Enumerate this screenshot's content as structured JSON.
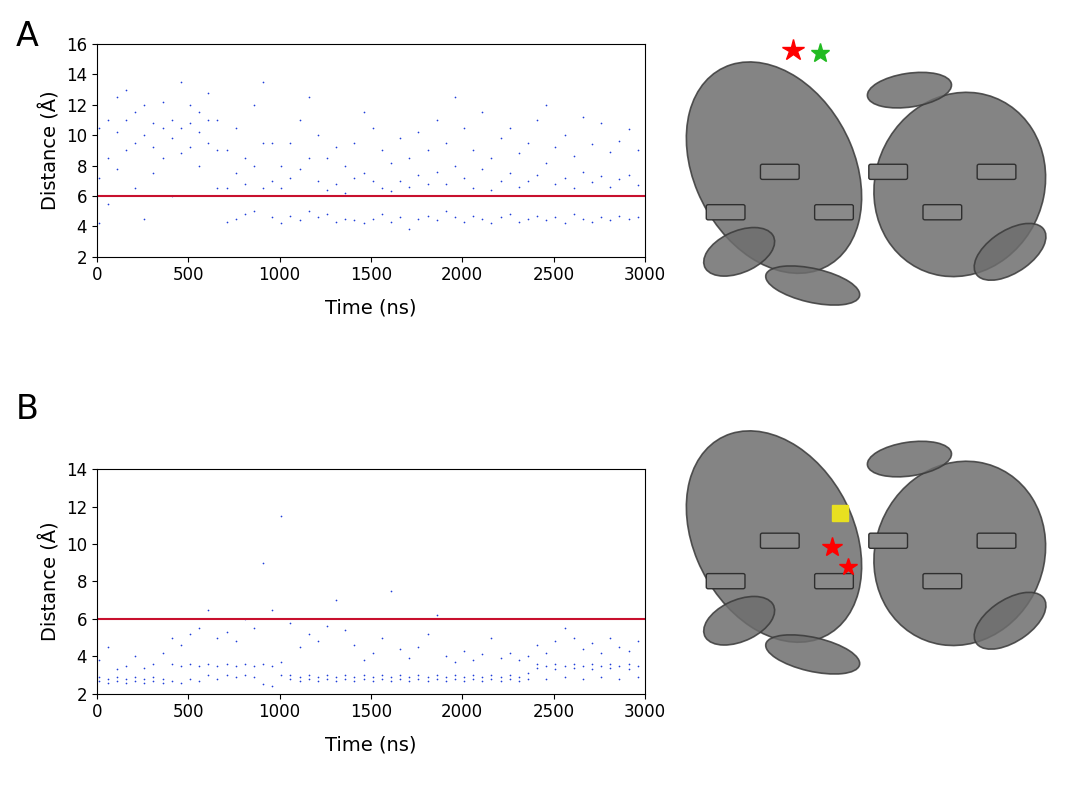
{
  "chart_data": [
    {
      "type": "scatter",
      "title": "A",
      "x_label": "Time (ns)",
      "y_label": "Distance (Å)",
      "xlim": [
        0,
        3000
      ],
      "xticks": [
        0,
        500,
        1000,
        1500,
        2000,
        2500,
        3000
      ],
      "ylim": [
        2,
        16
      ],
      "yticks": [
        2,
        4,
        6,
        8,
        10,
        12,
        14,
        16
      ],
      "x": [
        10,
        60,
        110,
        160,
        210,
        260,
        310,
        360,
        410,
        460,
        510,
        560,
        610,
        660,
        710,
        760,
        810,
        860,
        910,
        960,
        1010,
        1060,
        1110,
        1160,
        1210,
        1260,
        1310,
        1360,
        1410,
        1460,
        1510,
        1560,
        1610,
        1660,
        1710,
        1760,
        1810,
        1860,
        1910,
        1960,
        2010,
        2060,
        2110,
        2160,
        2210,
        2260,
        2310,
        2360,
        2410,
        2460,
        2510,
        2560,
        2610,
        2660,
        2710,
        2760,
        2810,
        2860,
        2910,
        2960
      ],
      "series": [
        {
          "type": "scatter",
          "color": "#1f3fd9",
          "marker": "point",
          "values": [
            10.5,
            11.0,
            12.5,
            13.0,
            11.5,
            12.0,
            10.8,
            12.2,
            11.0,
            13.5,
            12.0,
            11.5,
            12.8,
            11.0,
            9.0,
            10.5,
            8.5,
            12.0,
            13.5,
            9.5,
            8.0,
            9.5,
            11.0,
            12.5,
            10.0,
            8.5,
            9.2,
            8.0,
            9.5,
            11.5,
            10.5,
            9.0,
            8.2,
            9.8,
            8.5,
            10.2,
            9.0,
            11.0,
            9.5,
            12.5,
            10.5,
            9.0,
            11.5,
            8.5,
            9.8,
            10.5,
            8.8,
            9.5,
            11.0,
            12.0,
            9.2,
            10.0,
            8.6,
            11.2,
            9.4,
            10.8,
            8.9,
            9.6,
            10.4,
            9.0
          ]
        },
        {
          "type": "scatter",
          "color": "#1f3fd9",
          "marker": "point",
          "values": [
            7.2,
            8.5,
            10.2,
            11.0,
            9.5,
            10.0,
            9.2,
            10.5,
            9.8,
            10.5,
            10.8,
            10.2,
            11.0,
            9.0,
            6.5,
            7.5,
            6.8,
            8.0,
            9.5,
            7.0,
            6.5,
            7.2,
            7.8,
            8.5,
            7.0,
            6.4,
            6.8,
            6.2,
            7.2,
            7.5,
            7.0,
            6.5,
            6.3,
            7.0,
            6.6,
            7.4,
            6.8,
            7.6,
            6.8,
            8.0,
            7.2,
            6.5,
            7.8,
            6.4,
            7.0,
            7.5,
            6.6,
            7.0,
            7.4,
            8.2,
            6.8,
            7.2,
            6.5,
            7.6,
            6.9,
            7.3,
            6.6,
            7.1,
            7.4,
            6.7
          ]
        },
        {
          "type": "scatter",
          "color": "#1f3fd9",
          "marker": "point",
          "values": [
            4.2,
            5.5,
            7.8,
            9.0,
            6.5,
            4.5,
            7.5,
            8.5,
            6.0,
            8.8,
            9.2,
            8.0,
            9.5,
            6.5,
            4.3,
            4.5,
            4.8,
            5.0,
            6.5,
            4.6,
            4.2,
            4.7,
            4.4,
            5.0,
            4.6,
            4.8,
            4.3,
            4.5,
            4.4,
            4.2,
            4.5,
            4.8,
            4.3,
            4.6,
            3.8,
            4.5,
            4.7,
            4.4,
            5.0,
            4.6,
            4.3,
            4.7,
            4.5,
            4.2,
            4.6,
            4.8,
            4.3,
            4.5,
            4.7,
            4.4,
            4.6,
            4.2,
            4.8,
            4.5,
            4.3,
            4.6,
            4.4,
            4.7,
            4.5,
            4.6
          ]
        },
        {
          "type": "line",
          "color": "#c8102e",
          "line_style": "solid",
          "x": [
            0,
            3000
          ],
          "values": [
            6,
            6
          ]
        }
      ]
    },
    {
      "type": "scatter",
      "title": "B",
      "x_label": "Time (ns)",
      "y_label": "Distance (Å)",
      "xlim": [
        0,
        3000
      ],
      "xticks": [
        0,
        500,
        1000,
        1500,
        2000,
        2500,
        3000
      ],
      "ylim": [
        2,
        14
      ],
      "yticks": [
        2,
        4,
        6,
        8,
        10,
        12,
        14
      ],
      "x": [
        10,
        60,
        110,
        160,
        210,
        260,
        310,
        360,
        410,
        460,
        510,
        560,
        610,
        660,
        710,
        760,
        810,
        860,
        910,
        960,
        1010,
        1060,
        1110,
        1160,
        1210,
        1260,
        1310,
        1360,
        1410,
        1460,
        1510,
        1560,
        1610,
        1660,
        1710,
        1760,
        1810,
        1860,
        1910,
        1960,
        2010,
        2060,
        2110,
        2160,
        2210,
        2260,
        2310,
        2360,
        2410,
        2460,
        2510,
        2560,
        2610,
        2660,
        2710,
        2760,
        2810,
        2860,
        2910,
        2960
      ],
      "series": [
        {
          "type": "scatter",
          "color": "#1f3fd9",
          "marker": "point",
          "values": [
            2.9,
            2.8,
            2.9,
            2.8,
            2.9,
            2.8,
            2.9,
            2.8,
            3.6,
            3.5,
            3.6,
            3.5,
            3.6,
            3.5,
            3.6,
            3.5,
            3.6,
            3.5,
            3.6,
            3.5,
            3.7,
            3.0,
            2.9,
            3.0,
            2.9,
            3.0,
            2.9,
            3.0,
            2.9,
            3.0,
            2.9,
            3.0,
            2.9,
            3.0,
            2.9,
            3.0,
            2.9,
            3.0,
            2.9,
            3.0,
            2.9,
            3.0,
            2.9,
            3.0,
            2.9,
            3.0,
            2.9,
            3.1,
            3.6,
            3.5,
            3.6,
            3.5,
            3.6,
            3.5,
            3.6,
            3.5,
            3.6,
            3.5,
            3.6,
            3.5
          ]
        },
        {
          "type": "scatter",
          "color": "#1f3fd9",
          "marker": "point",
          "values": [
            2.7,
            2.6,
            2.7,
            2.6,
            2.7,
            2.6,
            2.7,
            2.6,
            2.7,
            2.6,
            2.8,
            2.7,
            3.0,
            2.8,
            3.0,
            2.9,
            3.0,
            2.9,
            2.5,
            2.4,
            3.0,
            2.8,
            2.7,
            2.8,
            2.7,
            2.8,
            2.7,
            2.8,
            2.7,
            2.8,
            2.7,
            2.8,
            2.7,
            2.8,
            2.7,
            2.8,
            2.7,
            2.8,
            2.7,
            2.8,
            2.7,
            2.8,
            2.7,
            2.8,
            2.7,
            2.8,
            2.7,
            2.8,
            3.4,
            2.8,
            3.3,
            2.9,
            3.4,
            2.8,
            3.3,
            2.9,
            3.4,
            2.8,
            3.3,
            2.9
          ]
        },
        {
          "type": "scatter",
          "color": "#1f3fd9",
          "marker": "point",
          "values": [
            3.8,
            4.5,
            3.3,
            3.5,
            4.0,
            3.4,
            3.6,
            4.2,
            5.0,
            4.6,
            5.2,
            5.5,
            6.5,
            5.0,
            5.3,
            4.8,
            6.0,
            5.5,
            9.0,
            6.5,
            11.5,
            5.8,
            4.5,
            5.2,
            4.8,
            5.6,
            7.0,
            5.4,
            4.6,
            3.8,
            4.2,
            5.0,
            7.5,
            4.4,
            3.9,
            4.5,
            5.2,
            6.2,
            4.0,
            3.7,
            4.3,
            3.8,
            4.1,
            5.0,
            3.9,
            4.2,
            3.8,
            4.0,
            4.6,
            4.2,
            4.8,
            5.5,
            5.0,
            4.4,
            4.7,
            4.2,
            5.0,
            4.5,
            4.3,
            4.8
          ]
        },
        {
          "type": "line",
          "color": "#c8102e",
          "line_style": "solid",
          "x": [
            0,
            3000
          ],
          "values": [
            6,
            6
          ]
        }
      ]
    }
  ]
}
